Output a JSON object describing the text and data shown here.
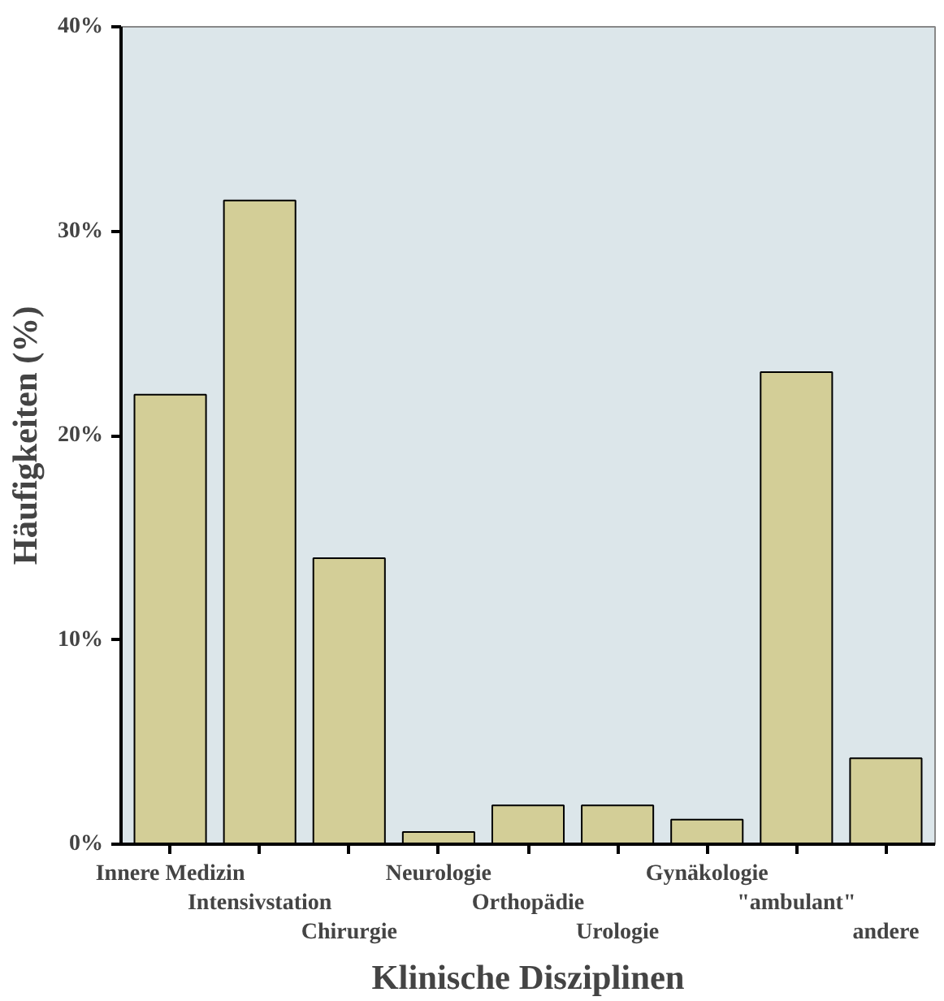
{
  "chart_data": {
    "type": "bar",
    "xlabel": "Klinische Disziplinen",
    "ylabel": "Häufigkeiten (%)",
    "categories": [
      "Innere Medizin",
      "Intensivstation",
      "Chirurgie",
      "Neurologie",
      "Orthopädie",
      "Urologie",
      "Gynäkologie",
      "\"ambulant\"",
      "andere"
    ],
    "values": [
      22.0,
      31.5,
      14.0,
      0.6,
      1.9,
      1.9,
      1.2,
      23.1,
      4.2
    ],
    "color": "#d3ce97",
    "ylim": [
      0,
      40
    ],
    "yticks": [
      {
        "value": 0,
        "label": "0%"
      },
      {
        "value": 10,
        "label": "10%"
      },
      {
        "value": 20,
        "label": "20%"
      },
      {
        "value": 30,
        "label": "30%"
      },
      {
        "value": 40,
        "label": "40%"
      }
    ],
    "grid": false
  }
}
